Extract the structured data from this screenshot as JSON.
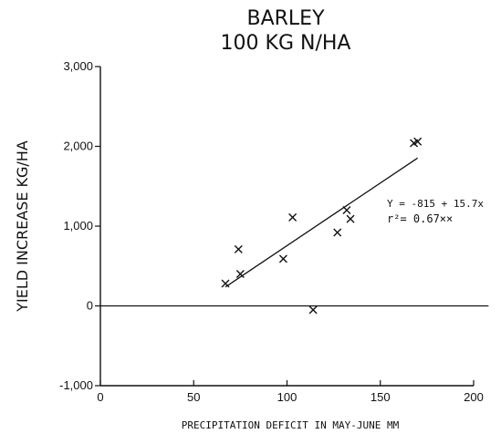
{
  "chart_data": {
    "type": "scatter",
    "title": "BARLEY",
    "subtitle": "100 KG N/HA",
    "xlabel": "PRECIPITATION DEFICIT IN MAY-JUNE MM",
    "ylabel": "YIELD INCREASE KG/HA",
    "xlim": [
      0,
      200
    ],
    "ylim": [
      -1000,
      3000
    ],
    "x_ticks": [
      0,
      50,
      100,
      150,
      200
    ],
    "x_tick_labels": [
      "0",
      "50",
      "100",
      "150",
      "200"
    ],
    "y_ticks": [
      -1000,
      0,
      1000,
      2000,
      3000
    ],
    "y_tick_labels": [
      "-1,000",
      "0",
      "1,000",
      "2,000",
      "3,000"
    ],
    "grid": false,
    "marker": "x",
    "points": [
      {
        "x": 67,
        "y": 280
      },
      {
        "x": 74,
        "y": 710
      },
      {
        "x": 75,
        "y": 400
      },
      {
        "x": 98,
        "y": 590
      },
      {
        "x": 103,
        "y": 1110
      },
      {
        "x": 114,
        "y": -50
      },
      {
        "x": 127,
        "y": 920
      },
      {
        "x": 132,
        "y": 1200
      },
      {
        "x": 134,
        "y": 1090
      },
      {
        "x": 168,
        "y": 2040
      },
      {
        "x": 170,
        "y": 2060
      }
    ],
    "regression": {
      "intercept": -815,
      "slope": 15.7,
      "x_range": [
        67,
        170
      ],
      "equation": "Y = -815 + 15.7x",
      "r2_label": "r²= 0.67××"
    },
    "zero_line": {
      "y": 0,
      "x_range": [
        0,
        208
      ]
    }
  }
}
